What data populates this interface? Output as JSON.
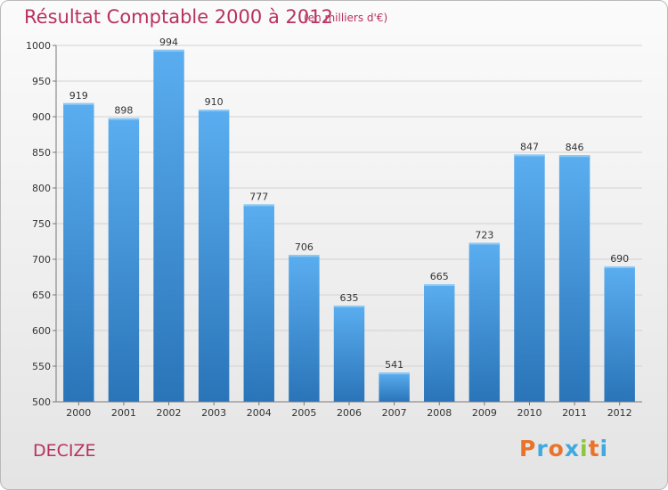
{
  "chart_data": {
    "type": "bar",
    "title": "Résultat Comptable 2000 à 2012",
    "subtitle": "(en milliers d'€)",
    "categories": [
      "2000",
      "2001",
      "2002",
      "2003",
      "2004",
      "2005",
      "2006",
      "2007",
      "2008",
      "2009",
      "2010",
      "2011",
      "2012"
    ],
    "values": [
      919,
      898,
      994,
      910,
      777,
      706,
      635,
      541,
      665,
      723,
      847,
      846,
      690
    ],
    "ylim": [
      500,
      1000
    ],
    "yticks": [
      500,
      550,
      600,
      650,
      700,
      750,
      800,
      850,
      900,
      950,
      1000
    ],
    "grid": true,
    "bar_color": "#3d8fd6",
    "bar_color_light": "#5aaef0",
    "bar_color_dark": "#2a74b8"
  },
  "footer": {
    "city": "DECIZE",
    "logo_letters": [
      "P",
      "r",
      "o",
      "x",
      "i",
      "t",
      "i"
    ],
    "logo_colors": [
      "#e8742b",
      "#3fa9e0",
      "#e8742b",
      "#3fa9e0",
      "#8cc63f",
      "#e8742b",
      "#3fa9e0"
    ]
  }
}
